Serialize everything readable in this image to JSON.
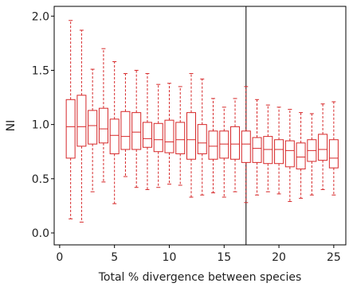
{
  "chart_data": {
    "type": "box",
    "title": "",
    "xlabel": "Total % divergence between species",
    "ylabel": "NI",
    "xlim": [
      -0.5,
      26.1
    ],
    "ylim": [
      -0.11,
      2.09
    ],
    "x_ticks": [
      0,
      5,
      10,
      15,
      20,
      25
    ],
    "y_ticks": [
      0.0,
      0.5,
      1.0,
      1.5,
      2.0
    ],
    "y_tick_labels": [
      "0.0",
      "0.5",
      "1.0",
      "1.5",
      "2.0"
    ],
    "grid": false,
    "box_color": "#d62728",
    "reference_line": {
      "x": 17,
      "color": "#000000"
    },
    "boxes": [
      {
        "x": 1,
        "whisker_low": 0.13,
        "q1": 0.69,
        "median": 0.98,
        "q3": 1.23,
        "whisker_high": 1.96
      },
      {
        "x": 2,
        "whisker_low": 0.1,
        "q1": 0.8,
        "median": 0.98,
        "q3": 1.27,
        "whisker_high": 1.87
      },
      {
        "x": 3,
        "whisker_low": 0.38,
        "q1": 0.82,
        "median": 0.99,
        "q3": 1.13,
        "whisker_high": 1.51
      },
      {
        "x": 4,
        "whisker_low": 0.47,
        "q1": 0.83,
        "median": 0.96,
        "q3": 1.15,
        "whisker_high": 1.7
      },
      {
        "x": 5,
        "whisker_low": 0.27,
        "q1": 0.73,
        "median": 0.9,
        "q3": 1.05,
        "whisker_high": 1.58
      },
      {
        "x": 6,
        "whisker_low": 0.52,
        "q1": 0.77,
        "median": 0.89,
        "q3": 1.12,
        "whisker_high": 1.47
      },
      {
        "x": 7,
        "whisker_low": 0.42,
        "q1": 0.77,
        "median": 0.93,
        "q3": 1.11,
        "whisker_high": 1.5
      },
      {
        "x": 8,
        "whisker_low": 0.4,
        "q1": 0.79,
        "median": 0.87,
        "q3": 1.02,
        "whisker_high": 1.47
      },
      {
        "x": 9,
        "whisker_low": 0.42,
        "q1": 0.75,
        "median": 0.86,
        "q3": 1.01,
        "whisker_high": 1.37
      },
      {
        "x": 10,
        "whisker_low": 0.45,
        "q1": 0.74,
        "median": 0.84,
        "q3": 1.04,
        "whisker_high": 1.38
      },
      {
        "x": 11,
        "whisker_low": 0.44,
        "q1": 0.73,
        "median": 0.86,
        "q3": 1.02,
        "whisker_high": 1.35
      },
      {
        "x": 12,
        "whisker_low": 0.33,
        "q1": 0.68,
        "median": 0.86,
        "q3": 1.11,
        "whisker_high": 1.47
      },
      {
        "x": 13,
        "whisker_low": 0.35,
        "q1": 0.73,
        "median": 0.83,
        "q3": 1.0,
        "whisker_high": 1.42
      },
      {
        "x": 14,
        "whisker_low": 0.37,
        "q1": 0.68,
        "median": 0.8,
        "q3": 0.94,
        "whisker_high": 1.24
      },
      {
        "x": 15,
        "whisker_low": 0.33,
        "q1": 0.69,
        "median": 0.82,
        "q3": 0.94,
        "whisker_high": 1.16
      },
      {
        "x": 16,
        "whisker_low": 0.38,
        "q1": 0.68,
        "median": 0.82,
        "q3": 0.98,
        "whisker_high": 1.24
      },
      {
        "x": 17,
        "whisker_low": 0.28,
        "q1": 0.65,
        "median": 0.82,
        "q3": 0.94,
        "whisker_high": 1.35
      },
      {
        "x": 18,
        "whisker_low": 0.35,
        "q1": 0.65,
        "median": 0.78,
        "q3": 0.88,
        "whisker_high": 1.23
      },
      {
        "x": 19,
        "whisker_low": 0.38,
        "q1": 0.64,
        "median": 0.77,
        "q3": 0.89,
        "whisker_high": 1.18
      },
      {
        "x": 20,
        "whisker_low": 0.36,
        "q1": 0.64,
        "median": 0.77,
        "q3": 0.86,
        "whisker_high": 1.16
      },
      {
        "x": 21,
        "whisker_low": 0.29,
        "q1": 0.61,
        "median": 0.76,
        "q3": 0.85,
        "whisker_high": 1.14
      },
      {
        "x": 22,
        "whisker_low": 0.32,
        "q1": 0.59,
        "median": 0.7,
        "q3": 0.83,
        "whisker_high": 1.11
      },
      {
        "x": 23,
        "whisker_low": 0.35,
        "q1": 0.66,
        "median": 0.76,
        "q3": 0.86,
        "whisker_high": 1.1
      },
      {
        "x": 24,
        "whisker_low": 0.4,
        "q1": 0.67,
        "median": 0.77,
        "q3": 0.91,
        "whisker_high": 1.19
      },
      {
        "x": 25,
        "whisker_low": 0.35,
        "q1": 0.6,
        "median": 0.69,
        "q3": 0.86,
        "whisker_high": 1.21
      }
    ]
  }
}
